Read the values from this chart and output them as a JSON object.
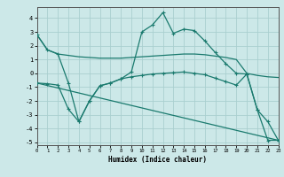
{
  "xlabel": "Humidex (Indice chaleur)",
  "bg_color": "#cce8e8",
  "grid_color": "#aacfcf",
  "line_color": "#1a7a6e",
  "xlim": [
    0,
    23
  ],
  "ylim": [
    -5.2,
    4.8
  ],
  "yticks": [
    -5,
    -4,
    -3,
    -2,
    -1,
    0,
    1,
    2,
    3,
    4
  ],
  "xticks": [
    0,
    1,
    2,
    3,
    4,
    5,
    6,
    7,
    8,
    9,
    10,
    11,
    12,
    13,
    14,
    15,
    16,
    17,
    18,
    19,
    20,
    21,
    22,
    23
  ],
  "line1_x": [
    0,
    1,
    2,
    3,
    4,
    5,
    6,
    7,
    8,
    9,
    10,
    11,
    12,
    13,
    14,
    15,
    16,
    17,
    18,
    19,
    20,
    21,
    22,
    23
  ],
  "line1_y": [
    2.8,
    1.7,
    1.4,
    1.3,
    1.2,
    1.15,
    1.1,
    1.1,
    1.1,
    1.15,
    1.2,
    1.25,
    1.3,
    1.35,
    1.4,
    1.4,
    1.35,
    1.25,
    1.15,
    1.0,
    0.0,
    -0.15,
    -0.25,
    -0.3
  ],
  "line2_x": [
    0,
    1,
    2,
    3,
    4,
    5,
    6,
    7,
    8,
    9,
    10,
    11,
    12,
    13,
    14,
    15,
    16,
    17,
    18,
    19,
    20,
    21,
    22,
    23
  ],
  "line2_y": [
    2.8,
    1.7,
    1.4,
    -0.7,
    -3.5,
    -2.0,
    -0.9,
    -0.7,
    -0.4,
    0.1,
    3.0,
    3.5,
    4.4,
    2.9,
    3.2,
    3.1,
    2.35,
    1.5,
    0.7,
    0.0,
    -0.05,
    -2.65,
    -3.5,
    -4.85
  ],
  "line3_x": [
    0,
    1,
    2,
    3,
    4,
    5,
    6,
    7,
    8,
    9,
    10,
    11,
    12,
    13,
    14,
    15,
    16,
    17,
    18,
    19,
    20,
    21,
    22,
    23
  ],
  "line3_y": [
    -0.7,
    -0.75,
    -0.85,
    -2.6,
    -3.5,
    -2.0,
    -0.9,
    -0.7,
    -0.4,
    -0.25,
    -0.15,
    -0.05,
    0.0,
    0.05,
    0.1,
    0.0,
    -0.1,
    -0.35,
    -0.6,
    -0.85,
    -0.05,
    -2.65,
    -4.85,
    -4.85
  ],
  "line4_x": [
    0,
    23
  ],
  "line4_y": [
    -0.7,
    -4.85
  ]
}
